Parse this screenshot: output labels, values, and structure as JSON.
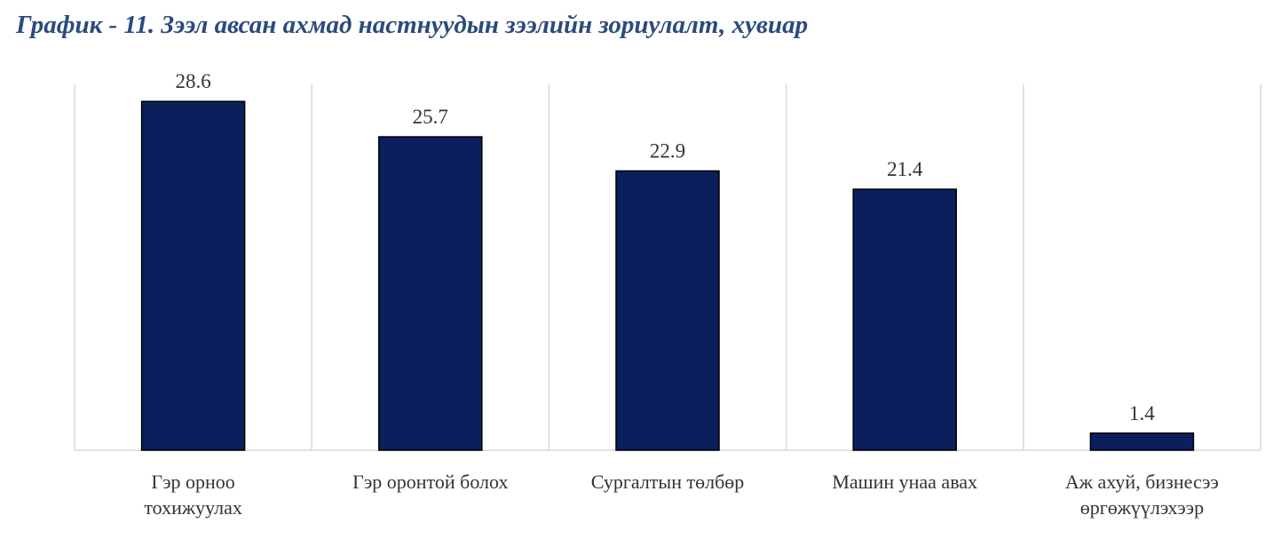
{
  "title": "График - 11. Зээл авсан ахмад настнуудын зээлийн зориулалт, хувиар",
  "chart_data": {
    "type": "bar",
    "title": "График - 11. Зээл авсан ахмад настнуудын зээлийн зориулалт, хувиар",
    "categories": [
      [
        "Гэр орноо",
        "тохижуулах"
      ],
      [
        "Гэр оронтой болох"
      ],
      [
        "Сургалтын төлбөр"
      ],
      [
        "Машин унаа авах"
      ],
      [
        "Аж ахуй, бизнесээ",
        "өргөжүүлэхээр"
      ]
    ],
    "values": [
      28.6,
      25.7,
      22.9,
      21.4,
      1.4
    ],
    "data_labels": [
      "28.6",
      "25.7",
      "22.9",
      "21.4",
      "1.4"
    ],
    "xlabel": "",
    "ylabel": "",
    "ylim": [
      0,
      30
    ],
    "grid": "vertical separators between categories",
    "legend": "none",
    "colors": {
      "bar": "#0B1F5C",
      "bar_border": "#000000",
      "grid": "#D9D9D9",
      "title": "#2B4A7E"
    }
  }
}
